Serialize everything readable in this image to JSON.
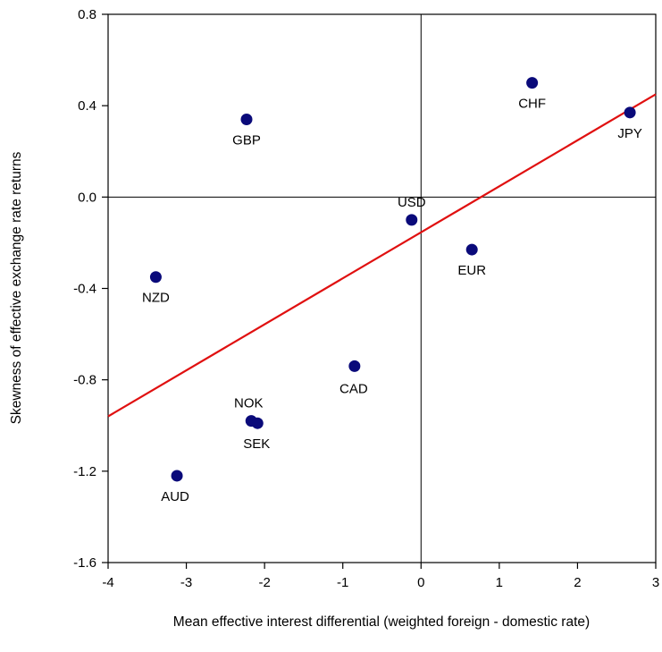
{
  "chart_data": {
    "type": "scatter",
    "title": "",
    "xlabel": "Mean effective interest differential (weighted foreign - domestic rate)",
    "ylabel": "Skewness of effective exchange rate returns",
    "xlim": [
      -4,
      3
    ],
    "ylim": [
      -1.6,
      0.8
    ],
    "xticks": [
      -4,
      -3,
      -2,
      -1,
      0,
      1,
      2,
      3
    ],
    "yticks": [
      -1.6,
      -1.2,
      -0.8,
      -0.4,
      0.0,
      0.4,
      0.8
    ],
    "xtick_labels": [
      "-4",
      "-3",
      "-2",
      "-1",
      "0",
      "1",
      "2",
      "3"
    ],
    "ytick_labels": [
      "-1.6",
      "-1.2",
      "-0.8",
      "-0.4",
      "0.0",
      "0.4",
      "0.8"
    ],
    "grid": false,
    "reference_lines": {
      "x": 0,
      "y": 0
    },
    "marker_color": "#0a0a7a",
    "fit_line_color": "#e01010",
    "points": [
      {
        "label": "CHF",
        "x": 1.42,
        "y": 0.5
      },
      {
        "label": "JPY",
        "x": 2.67,
        "y": 0.37
      },
      {
        "label": "GBP",
        "x": -2.23,
        "y": 0.34
      },
      {
        "label": "USD",
        "x": -0.12,
        "y": -0.1
      },
      {
        "label": "EUR",
        "x": 0.65,
        "y": -0.23
      },
      {
        "label": "NZD",
        "x": -3.39,
        "y": -0.35
      },
      {
        "label": "CAD",
        "x": -0.85,
        "y": -0.74
      },
      {
        "label": "NOK",
        "x": -2.17,
        "y": -0.98
      },
      {
        "label": "SEK",
        "x": -2.09,
        "y": -0.99
      },
      {
        "label": "AUD",
        "x": -3.12,
        "y": -1.22
      }
    ],
    "fit_line": {
      "x": [
        -4,
        3
      ],
      "y": [
        -0.96,
        0.45
      ]
    }
  }
}
